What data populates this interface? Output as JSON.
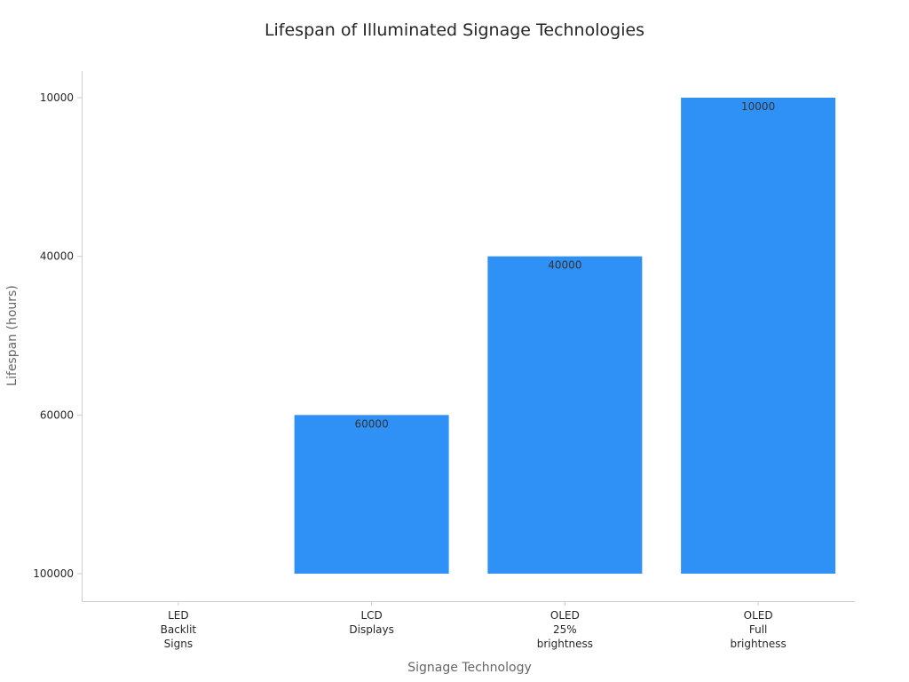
{
  "chart_data": {
    "type": "bar",
    "title": "Lifespan of Illuminated Signage Technologies",
    "xlabel": "Signage Technology",
    "ylabel": "Lifespan (hours)",
    "categories": [
      [
        "LED",
        "Backlit",
        "Signs"
      ],
      [
        "LCD",
        "Displays"
      ],
      [
        "OLED",
        "25%",
        "brightness"
      ],
      [
        "OLED",
        "Full",
        "brightness"
      ]
    ],
    "values": [
      100000,
      60000,
      40000,
      10000
    ],
    "data_labels": [
      "",
      "60000",
      "40000",
      "10000"
    ],
    "y_axis_type": "categorical",
    "y_ticks_top_to_bottom": [
      "10000",
      "40000",
      "60000",
      "100000"
    ],
    "bar_color": "#2f91f6",
    "grid": false
  }
}
